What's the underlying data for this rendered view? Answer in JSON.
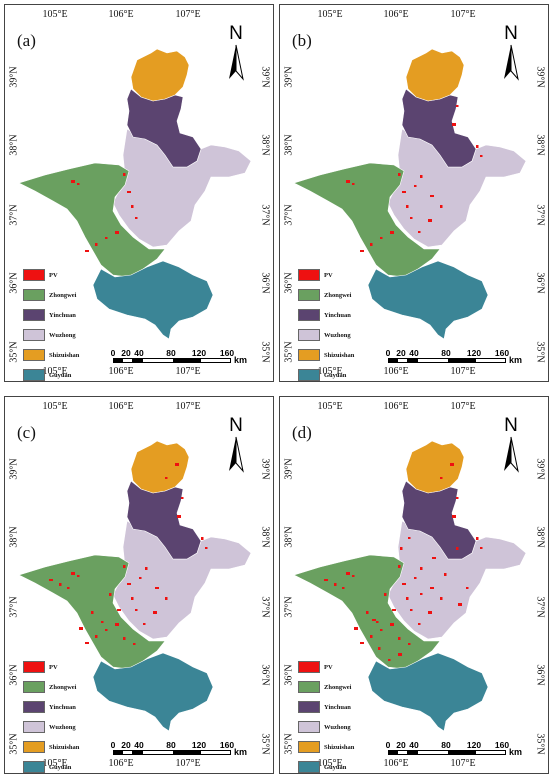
{
  "panels": [
    {
      "label": "(a)",
      "n_pv": 10
    },
    {
      "label": "(b)",
      "n_pv": 20
    },
    {
      "label": "(c)",
      "n_pv": 32
    },
    {
      "label": "(d)",
      "n_pv": 44
    }
  ],
  "lon_ticks": [
    "105°E",
    "106°E",
    "107°E"
  ],
  "lat_ticks": [
    "39°N",
    "38°N",
    "37°N",
    "36°N",
    "35°N"
  ],
  "legend": [
    {
      "name": "PV",
      "color": "#ee1111"
    },
    {
      "name": "Zhongwei",
      "color": "#6aa060"
    },
    {
      "name": "Yinchuan",
      "color": "#5b4470"
    },
    {
      "name": "Wuzhong",
      "color": "#cfc4d8"
    },
    {
      "name": "Shizuishan",
      "color": "#e49d22"
    },
    {
      "name": "Guyuan",
      "color": "#3b8596"
    }
  ],
  "scale": {
    "labels": [
      "0",
      "20",
      "40",
      "80",
      "120",
      "160"
    ],
    "unit": "km"
  },
  "north_label": "N",
  "colors": {
    "pv": "#ee1111",
    "zhongwei": "#6aa060",
    "yinchuan": "#5b4470",
    "wuzhong": "#cfc4d8",
    "shizuishan": "#e49d22",
    "guyuan": "#3b8596"
  }
}
